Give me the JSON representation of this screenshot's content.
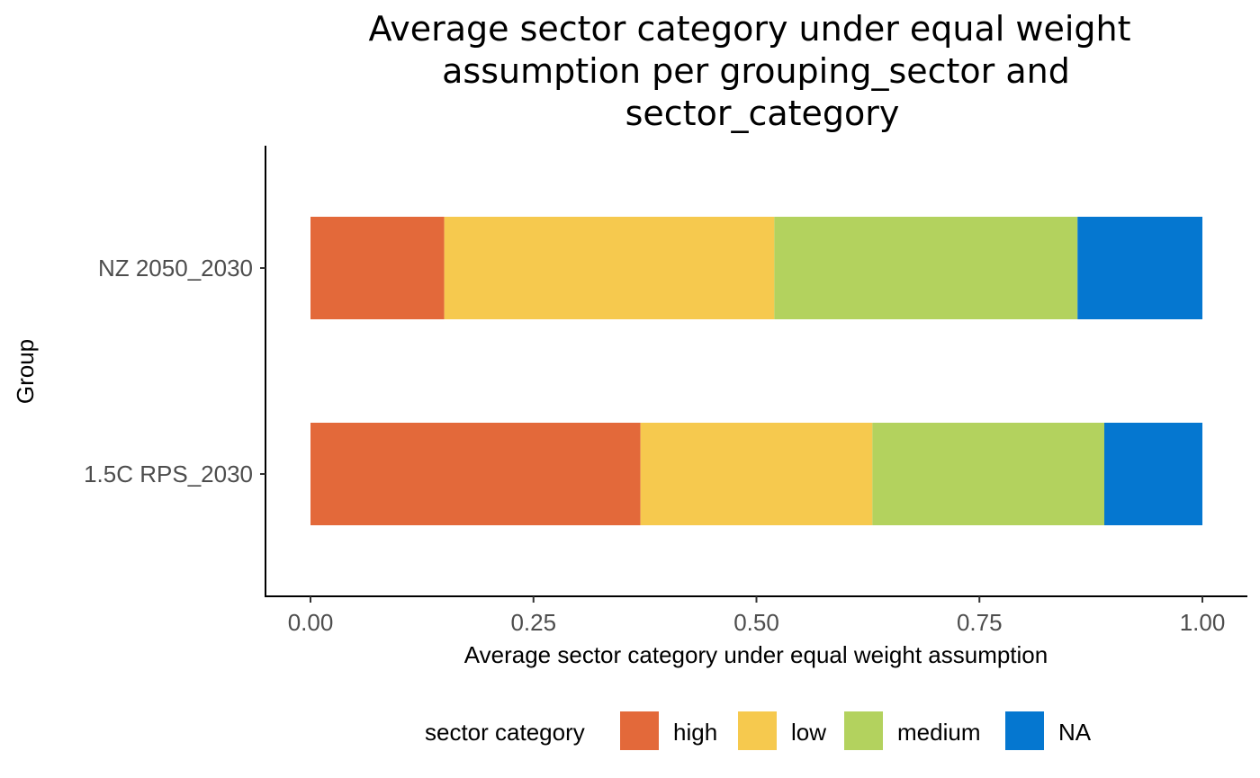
{
  "chart_data": {
    "type": "bar",
    "orientation": "horizontal",
    "stacked": true,
    "title_lines": [
      "Average sector category under equal weight",
      "assumption per grouping_sector and",
      "sector_category"
    ],
    "xlabel": "Average sector category under equal weight assumption",
    "ylabel": "Group",
    "xlim": [
      0,
      1
    ],
    "x_ticks": [
      {
        "value": 0,
        "label": "0.00"
      },
      {
        "value": 0.25,
        "label": "0.25"
      },
      {
        "value": 0.5,
        "label": "0.50"
      },
      {
        "value": 0.75,
        "label": "0.75"
      },
      {
        "value": 1,
        "label": "1.00"
      }
    ],
    "categories": [
      "NZ 2050_2030",
      "1.5C RPS_2030"
    ],
    "series": [
      {
        "name": "high",
        "color": "#E3693A",
        "values": [
          0.15,
          0.37
        ]
      },
      {
        "name": "low",
        "color": "#F6C94E",
        "values": [
          0.37,
          0.26
        ]
      },
      {
        "name": "medium",
        "color": "#B3D25E",
        "values": [
          0.34,
          0.26
        ]
      },
      {
        "name": "NA",
        "color": "#0577D0",
        "values": [
          0.14,
          0.11
        ]
      }
    ],
    "legend": {
      "title": "sector category",
      "position": "bottom"
    },
    "grid": false
  }
}
